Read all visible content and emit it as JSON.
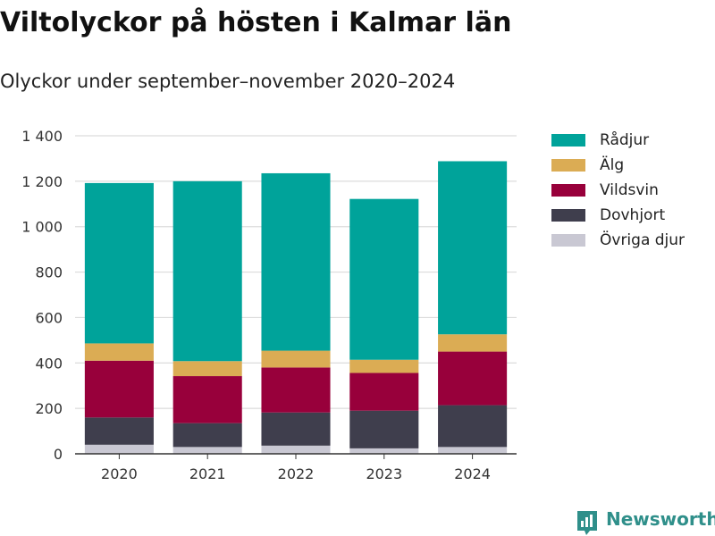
{
  "title": "Viltolyckor på hösten i Kalmar län",
  "subtitle": "Olyckor under september–november 2020–2024",
  "brand": {
    "name": "Newsworthy",
    "icon": "newsworthy-logo-icon",
    "color": "#2f8f8a"
  },
  "chart_data": {
    "type": "bar",
    "stacked": true,
    "title": "Viltolyckor på hösten i Kalmar län",
    "subtitle": "Olyckor under september–november 2020–2024",
    "xlabel": "",
    "ylabel": "",
    "ylim": [
      0,
      1400
    ],
    "yticks": [
      0,
      200,
      400,
      600,
      800,
      1000,
      1200,
      1400
    ],
    "ytick_labels": [
      "0",
      "200",
      "400",
      "600",
      "800",
      "1 000",
      "1 200",
      "1 400"
    ],
    "grid": true,
    "legend_position": "right",
    "categories": [
      "2020",
      "2021",
      "2022",
      "2023",
      "2024"
    ],
    "series": [
      {
        "name": "Övriga djur",
        "color": "#c9c8d3",
        "values": [
          40,
          30,
          36,
          24,
          30
        ]
      },
      {
        "name": "Dovhjort",
        "color": "#3f3e4d",
        "values": [
          120,
          105,
          146,
          166,
          184
        ]
      },
      {
        "name": "Vildsvin",
        "color": "#98003b",
        "values": [
          250,
          207,
          198,
          166,
          236
        ]
      },
      {
        "name": "Älg",
        "color": "#dbac54",
        "values": [
          76,
          66,
          74,
          58,
          76
        ]
      },
      {
        "name": "Rådjur",
        "color": "#00a39a",
        "values": [
          706,
          792,
          781,
          708,
          762
        ]
      }
    ],
    "legend": [
      "Rådjur",
      "Älg",
      "Vildsvin",
      "Dovhjort",
      "Övriga djur"
    ]
  }
}
